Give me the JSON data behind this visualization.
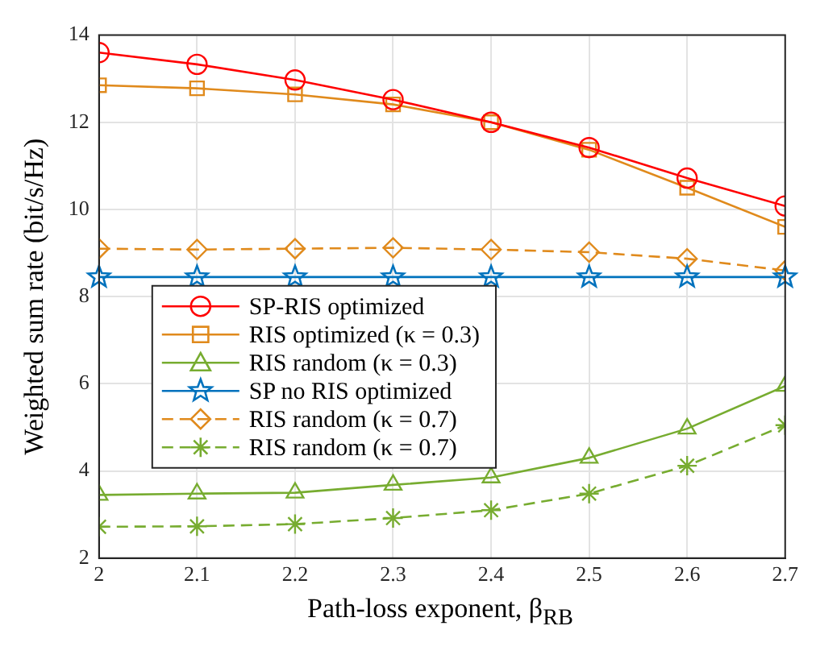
{
  "chart_data": {
    "type": "line",
    "xlabel": "Path-loss exponent, β$_{RB}$",
    "ylabel": "Weighted sum rate (bit/s/Hz)",
    "x": [
      2,
      2.1,
      2.2,
      2.3,
      2.4,
      2.5,
      2.6,
      2.7
    ],
    "xlim": [
      2,
      2.7
    ],
    "xticks": [
      2,
      2.1,
      2.2,
      2.3,
      2.4,
      2.5,
      2.6,
      2.7
    ],
    "ylim": [
      2,
      14
    ],
    "yticks": [
      2,
      4,
      6,
      8,
      10,
      12,
      14
    ],
    "grid": true,
    "legend": "left",
    "series": [
      {
        "name": "SP-RIS optimized",
        "color": "#ff0000",
        "marker": "circle",
        "line_style": "solid",
        "values": [
          13.6,
          13.33,
          12.97,
          12.52,
          12.0,
          11.42,
          10.72,
          10.08
        ]
      },
      {
        "name": "RIS optimized (κ = 0.3)",
        "color": "#e08a1c",
        "marker": "square",
        "line_style": "solid",
        "values": [
          12.85,
          12.78,
          12.64,
          12.41,
          12.0,
          11.37,
          10.5,
          9.6
        ]
      },
      {
        "name": "RIS random (κ = 0.3)",
        "color": "#77ac30",
        "marker": "triangle",
        "line_style": "solid",
        "values": [
          3.45,
          3.48,
          3.5,
          3.68,
          3.85,
          4.3,
          4.97,
          5.95
        ]
      },
      {
        "name": "SP no RIS optimized",
        "color": "#0072bd",
        "marker": "star",
        "line_style": "solid",
        "values": [
          8.45,
          8.45,
          8.45,
          8.45,
          8.45,
          8.45,
          8.45,
          8.45
        ]
      },
      {
        "name": "RIS random (κ = 0.7)",
        "color": "#e08a1c",
        "marker": "diamond",
        "line_style": "dashed",
        "values": [
          9.1,
          9.08,
          9.1,
          9.12,
          9.08,
          9.02,
          8.87,
          8.6
        ]
      },
      {
        "name": "RIS random (κ = 0.7)",
        "color": "#77ac30",
        "marker": "cross",
        "line_style": "dashed",
        "values": [
          2.72,
          2.73,
          2.78,
          2.92,
          3.1,
          3.48,
          4.12,
          5.05
        ]
      }
    ]
  }
}
